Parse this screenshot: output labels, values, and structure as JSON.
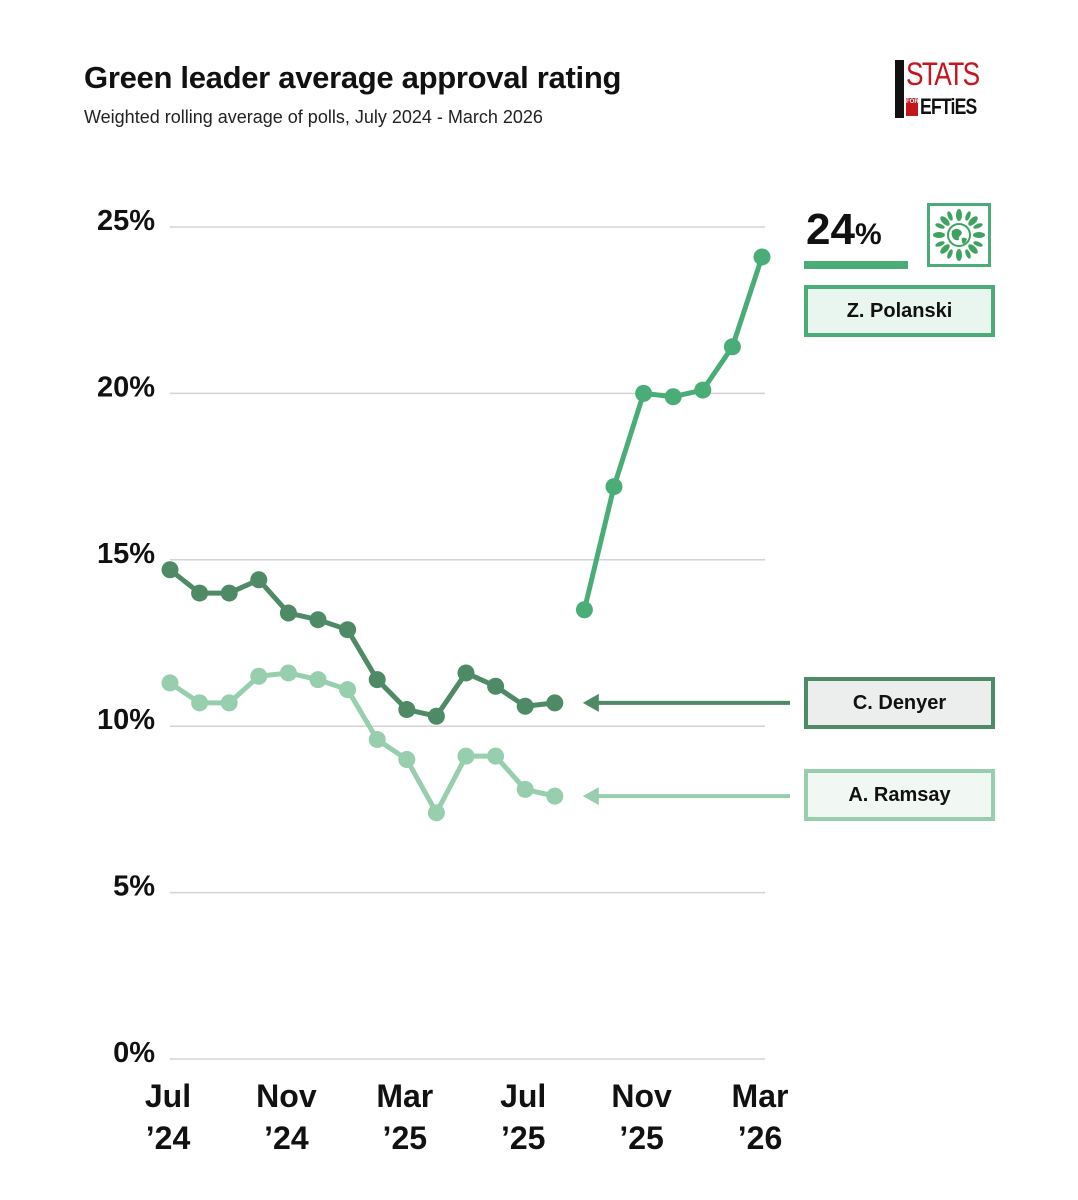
{
  "title": "Green leader average approval rating",
  "subtitle": "Weighted rolling average of polls, July 2024 - March 2026",
  "logo": {
    "stats_text": "STATS",
    "for_text": "FOR",
    "lefties_text": "EFTiES",
    "brand_color": "#c4161c"
  },
  "highlight": {
    "value": "24",
    "unit": "%"
  },
  "chart_data": {
    "type": "line",
    "title": "Green leader average approval rating",
    "subtitle": "Weighted rolling average of polls, July 2024 - March 2026",
    "xlabel": "",
    "ylabel": "",
    "ylim": [
      0,
      25
    ],
    "yticks": [
      0,
      5,
      10,
      15,
      20,
      25
    ],
    "ytick_labels": [
      "0%",
      "5%",
      "10%",
      "15%",
      "20%",
      "25%"
    ],
    "x_months": [
      "Jul 2024",
      "Aug 2024",
      "Sep 2024",
      "Oct 2024",
      "Nov 2024",
      "Dec 2024",
      "Jan 2025",
      "Feb 2025",
      "Mar 2025",
      "Apr 2025",
      "May 2025",
      "Jun 2025",
      "Jul 2025",
      "Aug 2025",
      "Sep 2025",
      "Oct 2025",
      "Nov 2025",
      "Dec 2025",
      "Jan 2026",
      "Feb 2026",
      "Mar 2026"
    ],
    "xticks": [
      {
        "index": 0,
        "line1": "Jul",
        "line2": "’24"
      },
      {
        "index": 4,
        "line1": "Nov",
        "line2": "’24"
      },
      {
        "index": 8,
        "line1": "Mar",
        "line2": "’25"
      },
      {
        "index": 12,
        "line1": "Jul",
        "line2": "’25"
      },
      {
        "index": 16,
        "line1": "Nov",
        "line2": "’25"
      },
      {
        "index": 20,
        "line1": "Mar",
        "line2": "’26"
      }
    ],
    "grid": true,
    "series": [
      {
        "name": "C. Denyer",
        "color": "#4f8a66",
        "start_index": 0,
        "values": [
          14.7,
          14.0,
          14.0,
          14.4,
          13.4,
          13.2,
          12.9,
          11.4,
          10.5,
          10.3,
          11.6,
          11.2,
          10.6,
          10.7
        ]
      },
      {
        "name": "A. Ramsay",
        "color": "#97ceae",
        "start_index": 0,
        "values": [
          11.3,
          10.7,
          10.7,
          11.5,
          11.6,
          11.4,
          11.1,
          9.6,
          9.0,
          7.4,
          9.1,
          9.1,
          8.1,
          7.9
        ]
      },
      {
        "name": "Z. Polanski",
        "color": "#4aad78",
        "start_index": 14,
        "values": [
          13.5,
          17.2,
          20.0,
          19.9,
          20.1,
          21.4,
          24.1
        ]
      }
    ]
  }
}
